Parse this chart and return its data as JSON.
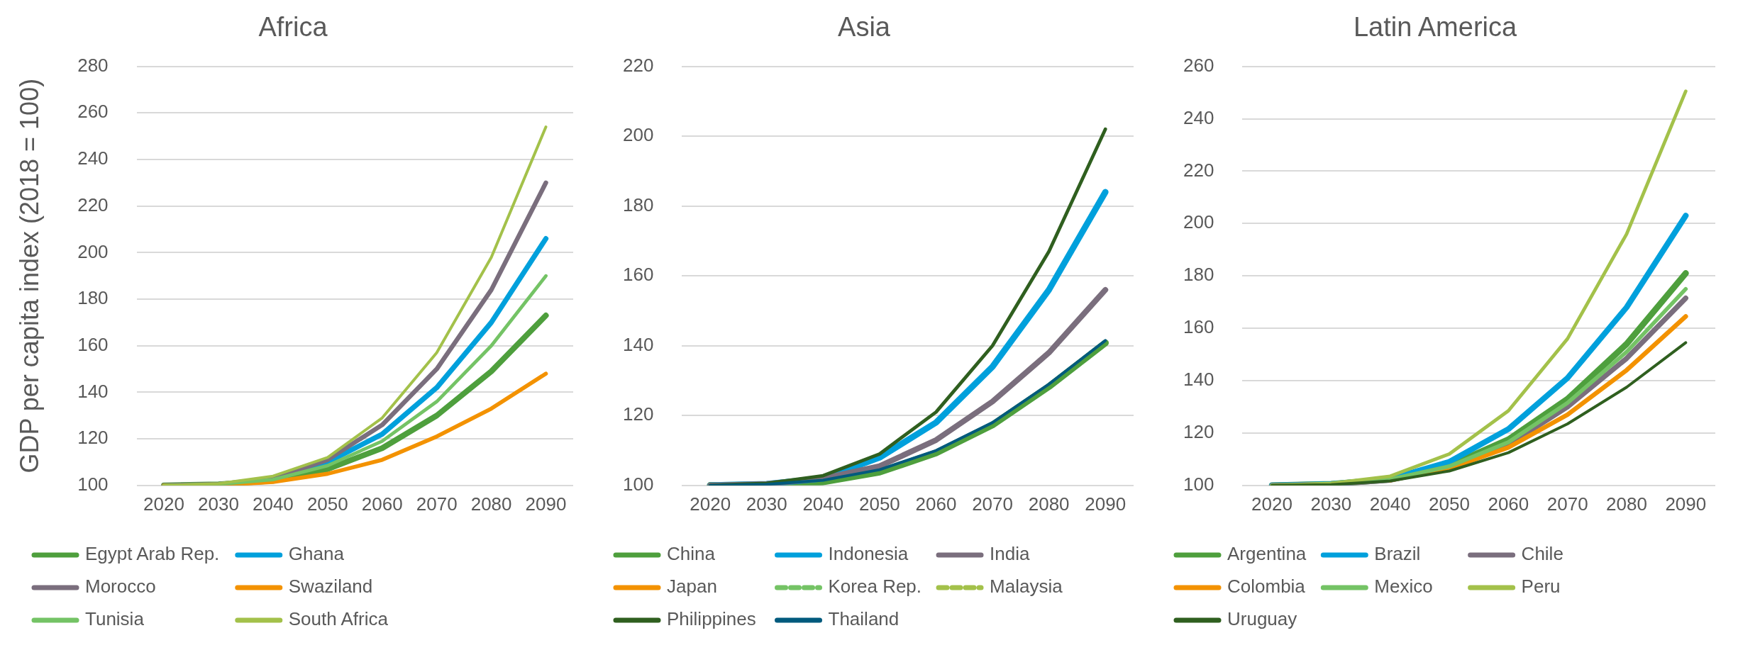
{
  "chart_data": [
    {
      "type": "line",
      "title": "Africa",
      "ylabel": "GDP per capita index (2018 = 100)",
      "categories": [
        "2020",
        "2030",
        "2040",
        "2050",
        "2060",
        "2070",
        "2080",
        "2090"
      ],
      "ylim": [
        100,
        280
      ],
      "yticks": [
        100,
        120,
        140,
        160,
        180,
        200,
        220,
        240,
        260,
        280
      ],
      "grid": "y",
      "legend": "bottom",
      "marker": "none",
      "line_style": "solid",
      "series": [
        {
          "name": "Egypt Arab Rep.",
          "color": "#4e9f3d",
          "values": [
            100,
            100.5,
            102,
            107,
            116,
            130,
            149,
            173
          ]
        },
        {
          "name": "Ghana",
          "color": "#00a0dc",
          "values": [
            null,
            null,
            102.5,
            110,
            122,
            142,
            170,
            206
          ]
        },
        {
          "name": "Morocco",
          "color": "#7a6e7d",
          "values": [
            100,
            100.5,
            103,
            111,
            126,
            150,
            184,
            230
          ]
        },
        {
          "name": "Swaziland",
          "color": "#f39200",
          "values": [
            100,
            100,
            101.5,
            105,
            111,
            121,
            133,
            148
          ]
        },
        {
          "name": "Tunisia",
          "color": "#74c365",
          "values": [
            100,
            100.5,
            102.5,
            108.5,
            119,
            136,
            160,
            190
          ]
        },
        {
          "name": "South Africa",
          "color": "#a3c14a",
          "values": [
            100,
            100.8,
            104,
            112,
            129,
            157,
            198,
            254
          ]
        }
      ]
    },
    {
      "type": "line",
      "title": "Asia",
      "categories": [
        "2020",
        "2030",
        "2040",
        "2050",
        "2060",
        "2070",
        "2080",
        "2090"
      ],
      "ylim": [
        100,
        220
      ],
      "yticks": [
        100,
        120,
        140,
        160,
        180,
        200,
        220
      ],
      "grid": "y",
      "legend": "bottom",
      "marker": "none",
      "line_style": "solid",
      "series": [
        {
          "name": "China",
          "color": "#4e9f3d",
          "values": [
            100,
            100.1,
            101,
            103.8,
            109.3,
            117.3,
            128.3,
            140.8
          ]
        },
        {
          "name": "Indonesia",
          "color": "#00a0dc",
          "values": [
            100,
            100.4,
            102,
            108,
            118,
            134,
            156,
            184
          ]
        },
        {
          "name": "India",
          "color": "#7a6e7d",
          "values": [
            100,
            100.4,
            102,
            105.5,
            113,
            124,
            138,
            156
          ]
        },
        {
          "name": "Japan",
          "color": "#f39200",
          "values": [
            null,
            null,
            null,
            null,
            null,
            null,
            null,
            null
          ]
        },
        {
          "name": "Korea Rep.",
          "color": "#74c365",
          "line_style": "dashed",
          "values": [
            null,
            null,
            null,
            null,
            null,
            null,
            null,
            null
          ]
        },
        {
          "name": "Malaysia",
          "color": "#a3c14a",
          "line_style": "dashed",
          "values": [
            null,
            null,
            null,
            null,
            null,
            null,
            null,
            null
          ]
        },
        {
          "name": "Philippines",
          "color": "#2f5f1f",
          "values": [
            100,
            100.6,
            102.8,
            109,
            121,
            140,
            167,
            202
          ]
        },
        {
          "name": "Thailand",
          "color": "#005a7d",
          "values": [
            100,
            100.3,
            101.5,
            104.5,
            110,
            118,
            129,
            141.5
          ]
        }
      ]
    },
    {
      "type": "line",
      "title": "Latin America",
      "categories": [
        "2020",
        "2030",
        "2040",
        "2050",
        "2060",
        "2070",
        "2080",
        "2090"
      ],
      "ylim": [
        100,
        260
      ],
      "yticks": [
        100,
        120,
        140,
        160,
        180,
        200,
        220,
        240,
        260
      ],
      "grid": "y",
      "legend": "bottom",
      "marker": "none",
      "line_style": "solid",
      "series": [
        {
          "name": "Argentina",
          "color": "#4e9f3d",
          "values": [
            100,
            100.5,
            102.3,
            107.5,
            117.5,
            133,
            154,
            181
          ]
        },
        {
          "name": "Brazil",
          "color": "#00a0dc",
          "values": [
            100,
            100.5,
            102.5,
            109,
            121.5,
            141,
            168,
            203
          ]
        },
        {
          "name": "Chile",
          "color": "#7a6e7d",
          "values": [
            100,
            100.4,
            102,
            107,
            115.5,
            130,
            148.5,
            171.5
          ]
        },
        {
          "name": "Colombia",
          "color": "#f39200",
          "values": [
            null,
            null,
            102,
            106.5,
            114.5,
            127,
            144,
            164.5
          ]
        },
        {
          "name": "Mexico",
          "color": "#74c365",
          "values": [
            100,
            100.5,
            102.3,
            107.3,
            116.5,
            131.5,
            151,
            175
          ]
        },
        {
          "name": "Peru",
          "color": "#a3c14a",
          "values": [
            100,
            100.8,
            103.5,
            112,
            128.5,
            156,
            196,
            250.5
          ]
        },
        {
          "name": "Uruguay",
          "color": "#2f5f1f",
          "values": [
            100,
            100.3,
            101.7,
            105.5,
            112.5,
            123.5,
            137.5,
            154.5
          ]
        }
      ]
    }
  ]
}
